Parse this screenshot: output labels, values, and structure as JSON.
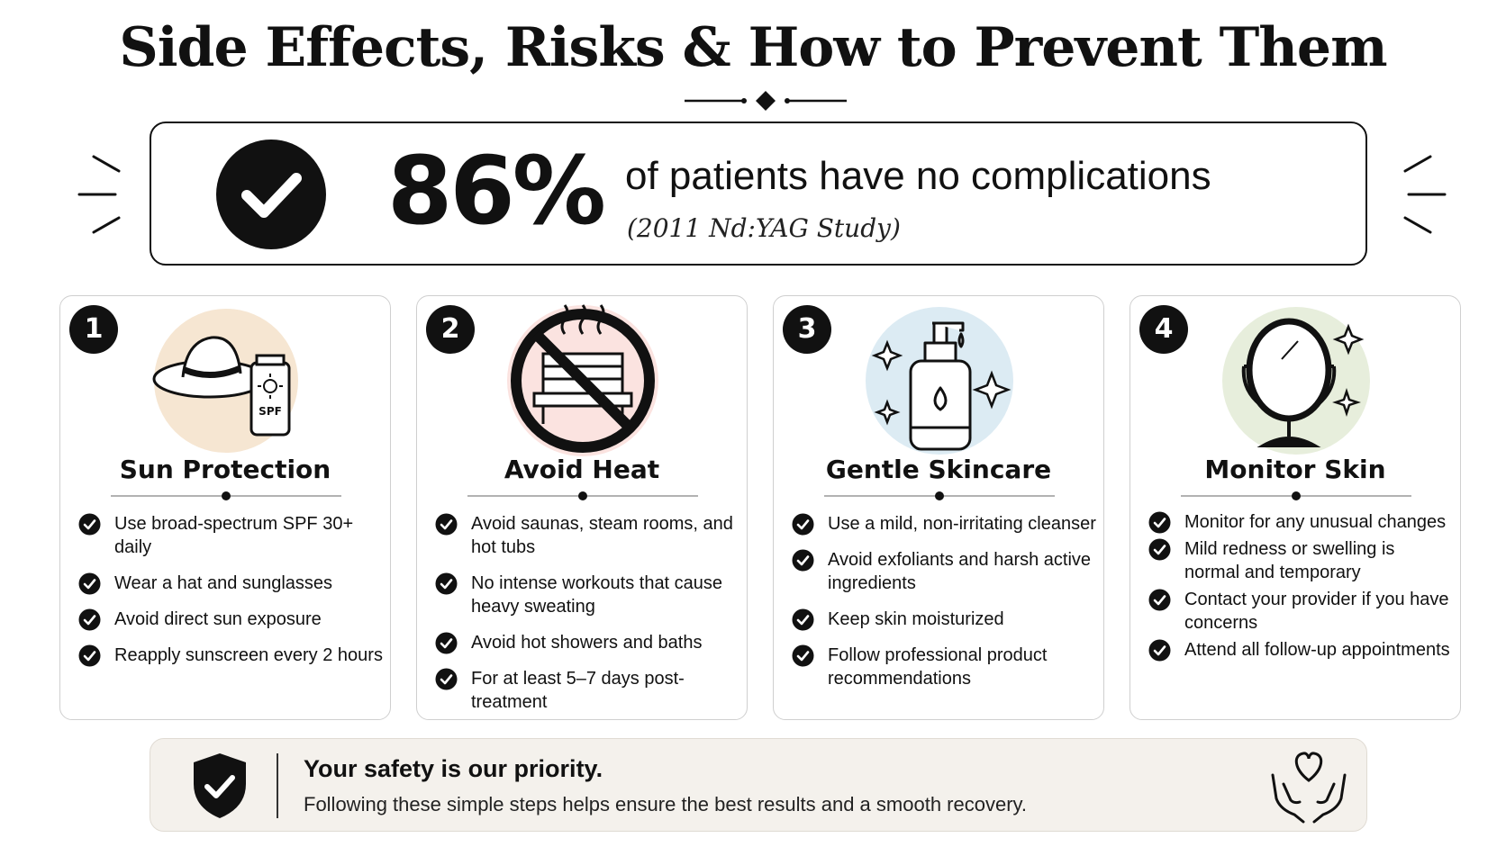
{
  "title": "Side Effects, Risks & How to Prevent Them",
  "stat": {
    "value": "86%",
    "text": "of patients have no complications",
    "source": "(2011 Nd:YAG Study)",
    "icon": "check-circle-icon"
  },
  "cards": [
    {
      "number": "1",
      "title": "Sun Protection",
      "icon": "hat-sunscreen-icon",
      "icon_bg": "#f6e6d2",
      "items": [
        "Use broad-spectrum SPF 30+ daily",
        "Wear a hat and sunglasses",
        "Avoid direct sun exposure",
        "Reapply sunscreen every 2 hours"
      ],
      "icon_label": "SPF"
    },
    {
      "number": "2",
      "title": "Avoid Heat",
      "icon": "no-sauna-icon",
      "icon_bg": "#fbe3e0",
      "items": [
        "Avoid saunas, steam rooms, and hot tubs",
        "No intense workouts that cause heavy sweating",
        "Avoid hot showers and baths",
        "For at least 5–7 days post-treatment"
      ]
    },
    {
      "number": "3",
      "title": "Gentle Skincare",
      "icon": "pump-bottle-icon",
      "icon_bg": "#dcebf3",
      "items": [
        "Use a mild, non-irritating cleanser",
        "Avoid exfoliants and harsh active ingredients",
        "Keep skin moisturized",
        "Follow professional product recommendations"
      ]
    },
    {
      "number": "4",
      "title": "Monitor Skin",
      "icon": "mirror-icon",
      "icon_bg": "#e7eedc",
      "items": [
        "Monitor for any unusual changes",
        "Mild redness or swelling is normal and temporary",
        "Contact your provider if you have concerns",
        "Attend all follow-up appointments"
      ]
    }
  ],
  "footer": {
    "heading": "Your safety is our priority.",
    "body": "Following these simple steps helps ensure the best results and a smooth recovery.",
    "left_icon": "shield-check-icon",
    "right_icon": "heart-hands-icon"
  },
  "colors": {
    "ink": "#111111",
    "footer_bg": "#f4f1ec",
    "card_border": "#cfcfcf"
  }
}
